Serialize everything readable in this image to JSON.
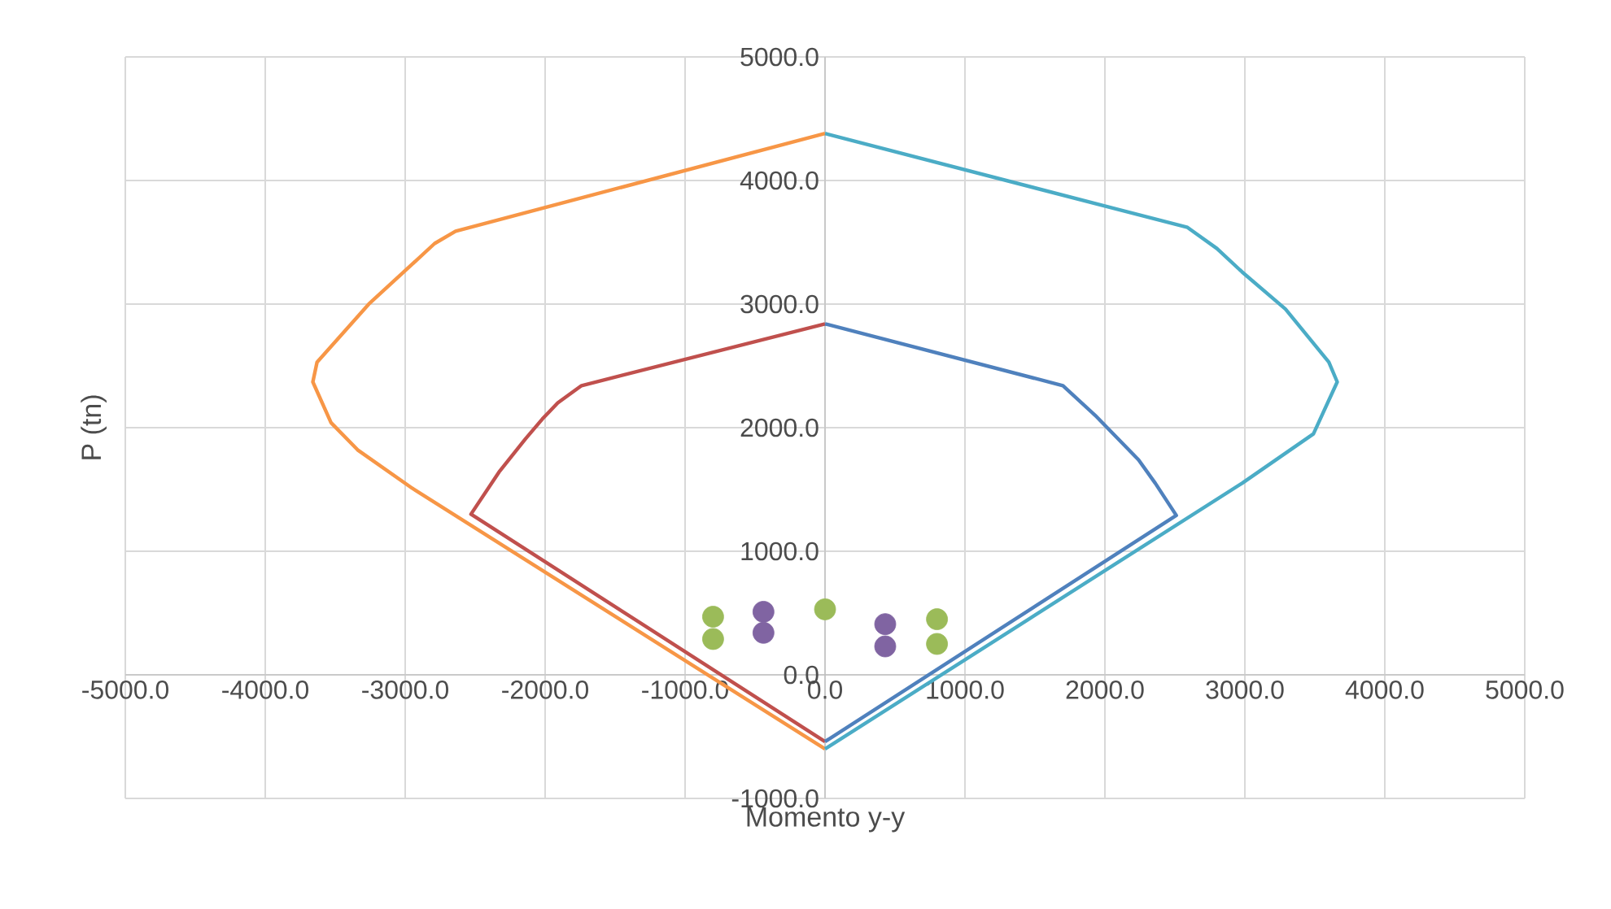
{
  "chart_data": {
    "type": "line",
    "xlabel": "Momento y-y",
    "ylabel": "P (tn)",
    "xlim": [
      -5000,
      5000
    ],
    "ylim": [
      -1000,
      5000
    ],
    "xticks": [
      {
        "value": -5000,
        "label": "-5000.0"
      },
      {
        "value": -4000,
        "label": "-4000.0"
      },
      {
        "value": -3000,
        "label": "-3000.0"
      },
      {
        "value": -2000,
        "label": "-2000.0"
      },
      {
        "value": -1000,
        "label": "-1000.0"
      },
      {
        "value": 0,
        "label": "0.0"
      },
      {
        "value": 1000,
        "label": "1000.0"
      },
      {
        "value": 2000,
        "label": "2000.0"
      },
      {
        "value": 3000,
        "label": "3000.0"
      },
      {
        "value": 4000,
        "label": "4000.0"
      },
      {
        "value": 5000,
        "label": "5000.0"
      }
    ],
    "yticks": [
      {
        "value": -1000,
        "label": "-1000.0"
      },
      {
        "value": 0,
        "label": "0.0"
      },
      {
        "value": 1000,
        "label": "1000.0"
      },
      {
        "value": 2000,
        "label": "2000.0"
      },
      {
        "value": 3000,
        "label": "3000.0"
      },
      {
        "value": 4000,
        "label": "4000.0"
      },
      {
        "value": 5000,
        "label": "5000.0"
      }
    ],
    "grid": true,
    "series": [
      {
        "color": "#f79646",
        "x": [
          0,
          -2640,
          -2790,
          -3010,
          -3260,
          -3630,
          -3660,
          -3530,
          -3340,
          -2950,
          0
        ],
        "values": [
          4380,
          3590,
          3490,
          3260,
          3000,
          2530,
          2370,
          2040,
          1820,
          1510,
          -600
        ]
      },
      {
        "color": "#4bacc6",
        "x": [
          0,
          2590,
          2800,
          2980,
          3290,
          3600,
          3660,
          3490,
          2980,
          0
        ],
        "values": [
          4380,
          3620,
          3450,
          3260,
          2960,
          2530,
          2370,
          1950,
          1550,
          -600
        ]
      },
      {
        "color": "#c0504d",
        "x": [
          0,
          -1740,
          -1910,
          -2020,
          -2140,
          -2330,
          -2530,
          0
        ],
        "values": [
          2840,
          2340,
          2200,
          2070,
          1910,
          1640,
          1300,
          -540
        ]
      },
      {
        "color": "#4f81bd",
        "x": [
          0,
          1700,
          1930,
          2240,
          2360,
          2510,
          0
        ],
        "values": [
          2840,
          2340,
          2100,
          1740,
          1550,
          1290,
          -540
        ]
      },
      {
        "type": "scatter",
        "color": "#9bbb59",
        "x": [
          -800,
          -800,
          0,
          800,
          800
        ],
        "values": [
          470,
          290,
          530,
          450,
          250
        ]
      },
      {
        "type": "scatter",
        "color": "#8064a2",
        "x": [
          -440,
          -440,
          430,
          430
        ],
        "values": [
          510,
          340,
          410,
          230
        ]
      }
    ]
  }
}
